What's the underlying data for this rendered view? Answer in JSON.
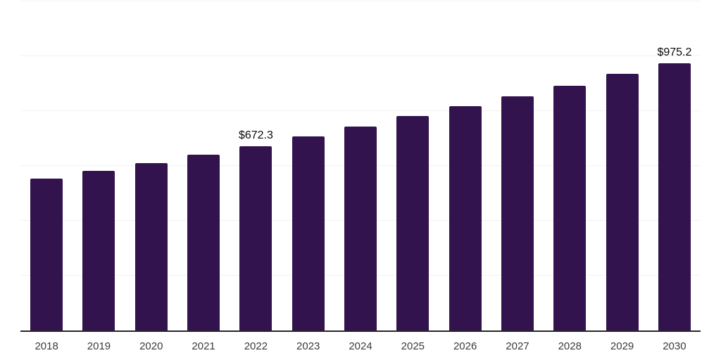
{
  "chart_data": {
    "type": "bar",
    "title": "",
    "xlabel": "",
    "ylabel": "",
    "categories": [
      "2018",
      "2019",
      "2020",
      "2021",
      "2022",
      "2023",
      "2024",
      "2025",
      "2026",
      "2027",
      "2028",
      "2029",
      "2030"
    ],
    "values": [
      554,
      583,
      611,
      641,
      672.3,
      708,
      744,
      782,
      819,
      855,
      893,
      937,
      975.2
    ],
    "bar_labels": [
      "",
      "",
      "",
      "",
      "$672.3",
      "",
      "",
      "",
      "",
      "",
      "",
      "",
      "$975.2"
    ],
    "ylim": [
      0,
      1206
    ],
    "gridline_step": 200,
    "grid": true,
    "legend": "none",
    "colors": {
      "bar": "#32134d",
      "axis_line": "#262626",
      "gridline": "#f2f2f2",
      "tick_label": "#3b3b3b",
      "value_label": "#0a0a0a",
      "background": "#ffffff"
    }
  }
}
